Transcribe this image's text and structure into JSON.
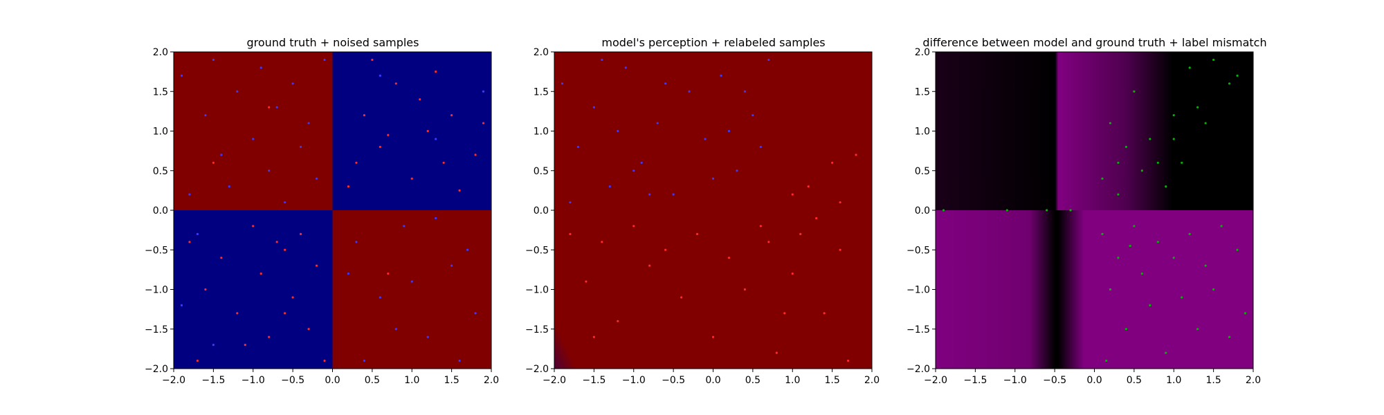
{
  "chart_data": [
    {
      "type": "heatmap",
      "title": "ground truth + noised samples",
      "xlabel": "",
      "ylabel": "",
      "xlim": [
        -2.0,
        2.0
      ],
      "ylim": [
        -2.0,
        2.0
      ],
      "xticks": [
        "−2.0",
        "−1.5",
        "−1.0",
        "−0.5",
        "0.0",
        "0.5",
        "1.0",
        "1.5",
        "2.0"
      ],
      "yticks": [
        "−2.0",
        "−1.5",
        "−1.0",
        "−0.5",
        "0.0",
        "0.5",
        "1.0",
        "1.5",
        "2.0"
      ],
      "background": {
        "description_free": true,
        "regions": [
          {
            "x": [
              -2.0,
              0.0
            ],
            "y": [
              0.0,
              2.0
            ],
            "color": "#800000"
          },
          {
            "x": [
              0.0,
              2.0
            ],
            "y": [
              0.0,
              2.0
            ],
            "color": "#000080"
          },
          {
            "x": [
              -2.0,
              0.0
            ],
            "y": [
              -2.0,
              0.0
            ],
            "color": "#000080"
          },
          {
            "x": [
              0.0,
              2.0
            ],
            "y": [
              -2.0,
              0.0
            ],
            "color": "#800000"
          }
        ]
      },
      "series": [
        {
          "color": "#3a3aff",
          "points": [
            [
              -1.9,
              1.7
            ],
            [
              -1.8,
              0.2
            ],
            [
              -1.6,
              1.2
            ],
            [
              -1.5,
              1.9
            ],
            [
              -1.4,
              0.7
            ],
            [
              -1.3,
              0.3
            ],
            [
              -1.2,
              1.5
            ],
            [
              -1.0,
              0.9
            ],
            [
              -0.9,
              1.8
            ],
            [
              -0.8,
              0.5
            ],
            [
              -0.7,
              1.3
            ],
            [
              -0.6,
              0.1
            ],
            [
              -0.5,
              1.6
            ],
            [
              -0.4,
              0.8
            ],
            [
              -0.3,
              1.1
            ],
            [
              -0.2,
              0.4
            ],
            [
              -0.1,
              1.9
            ],
            [
              -1.7,
              -0.3
            ],
            [
              -1.9,
              -1.2
            ],
            [
              -1.5,
              -1.7
            ],
            [
              0.3,
              -0.4
            ],
            [
              0.6,
              -1.1
            ],
            [
              0.9,
              -0.2
            ],
            [
              1.2,
              -1.6
            ],
            [
              1.5,
              -0.7
            ],
            [
              1.8,
              -1.3
            ],
            [
              0.4,
              -1.9
            ],
            [
              1.0,
              -0.9
            ],
            [
              1.3,
              -0.1
            ],
            [
              1.7,
              -0.5
            ],
            [
              0.2,
              -0.8
            ],
            [
              0.8,
              -1.5
            ],
            [
              1.6,
              -1.9
            ],
            [
              0.6,
              1.7
            ],
            [
              1.3,
              0.9
            ],
            [
              1.9,
              1.5
            ]
          ]
        },
        {
          "color": "#ff2a2a",
          "points": [
            [
              0.2,
              0.3
            ],
            [
              0.4,
              1.2
            ],
            [
              0.6,
              0.8
            ],
            [
              0.7,
              0.95
            ],
            [
              0.8,
              1.6
            ],
            [
              1.0,
              0.4
            ],
            [
              1.2,
              1.0
            ],
            [
              1.3,
              1.75
            ],
            [
              1.4,
              0.6
            ],
            [
              1.5,
              1.2
            ],
            [
              1.6,
              0.25
            ],
            [
              1.8,
              0.7
            ],
            [
              1.9,
              1.1
            ],
            [
              0.3,
              0.6
            ],
            [
              0.5,
              1.9
            ],
            [
              1.1,
              1.4
            ],
            [
              -1.8,
              -0.4
            ],
            [
              -1.6,
              -1.0
            ],
            [
              -1.4,
              -0.6
            ],
            [
              -1.2,
              -1.3
            ],
            [
              -1.0,
              -0.2
            ],
            [
              -0.9,
              -0.8
            ],
            [
              -0.8,
              -1.6
            ],
            [
              -0.7,
              -0.4
            ],
            [
              -0.6,
              -0.5
            ],
            [
              -0.5,
              -1.1
            ],
            [
              -0.4,
              -0.3
            ],
            [
              -0.3,
              -1.5
            ],
            [
              -0.2,
              -0.7
            ],
            [
              -0.1,
              -1.9
            ],
            [
              -1.7,
              -1.9
            ],
            [
              -1.1,
              -1.7
            ],
            [
              -0.6,
              -1.3
            ],
            [
              -1.5,
              0.6
            ],
            [
              -0.8,
              1.3
            ],
            [
              0.7,
              -0.8
            ]
          ]
        }
      ]
    },
    {
      "type": "heatmap",
      "title": "model's perception + relabeled samples",
      "xlabel": "",
      "ylabel": "",
      "xlim": [
        -2.0,
        2.0
      ],
      "ylim": [
        -2.0,
        2.0
      ],
      "xticks": [
        "−2.0",
        "−1.5",
        "−1.0",
        "−0.5",
        "0.0",
        "0.5",
        "1.0",
        "1.5",
        "2.0"
      ],
      "yticks": [
        "−2.0",
        "−1.5",
        "−1.0",
        "−0.5",
        "0.0",
        "0.5",
        "1.0",
        "1.5",
        "2.0"
      ],
      "background": {
        "colors": [
          "#000080",
          "#800000"
        ]
      },
      "series": [
        {
          "color": "#3a3aff",
          "points": [
            [
              -1.9,
              1.6
            ],
            [
              -1.7,
              0.8
            ],
            [
              -1.5,
              1.3
            ],
            [
              -1.3,
              0.3
            ],
            [
              -1.1,
              1.8
            ],
            [
              -0.9,
              0.6
            ],
            [
              -0.7,
              1.1
            ],
            [
              -0.5,
              0.2
            ],
            [
              -0.3,
              1.5
            ],
            [
              -0.1,
              0.9
            ],
            [
              0.1,
              1.7
            ],
            [
              0.3,
              0.5
            ],
            [
              0.5,
              1.2
            ],
            [
              0.7,
              1.9
            ],
            [
              -1.8,
              0.1
            ],
            [
              -1.2,
              1.0
            ],
            [
              -0.6,
              1.6
            ],
            [
              0.0,
              0.4
            ],
            [
              0.2,
              1.0
            ],
            [
              -0.8,
              0.2
            ],
            [
              0.6,
              0.8
            ],
            [
              -1.4,
              1.9
            ],
            [
              -1.0,
              0.5
            ],
            [
              0.4,
              1.5
            ]
          ]
        },
        {
          "color": "#ff2a2a",
          "points": [
            [
              -1.8,
              -0.3
            ],
            [
              -1.6,
              -0.9
            ],
            [
              -1.4,
              -0.4
            ],
            [
              -1.2,
              -1.4
            ],
            [
              -1.0,
              -0.2
            ],
            [
              -0.8,
              -0.7
            ],
            [
              -0.6,
              -0.5
            ],
            [
              -0.4,
              -1.1
            ],
            [
              -0.2,
              -0.3
            ],
            [
              0.0,
              -1.6
            ],
            [
              0.2,
              -0.6
            ],
            [
              0.4,
              -1.0
            ],
            [
              0.6,
              -0.2
            ],
            [
              0.8,
              -1.8
            ],
            [
              1.0,
              -0.8
            ],
            [
              1.2,
              0.3
            ],
            [
              1.4,
              -1.3
            ],
            [
              1.5,
              0.6
            ],
            [
              1.6,
              -0.5
            ],
            [
              1.8,
              0.7
            ],
            [
              1.0,
              0.2
            ],
            [
              0.7,
              -0.4
            ],
            [
              1.3,
              -0.1
            ],
            [
              1.7,
              -1.9
            ],
            [
              0.9,
              -1.3
            ],
            [
              -1.5,
              -1.6
            ],
            [
              1.1,
              -0.3
            ],
            [
              1.6,
              0.1
            ]
          ]
        }
      ]
    },
    {
      "type": "heatmap",
      "title": "difference between model and ground truth + label mismatch",
      "xlabel": "",
      "ylabel": "",
      "xlim": [
        -2.0,
        2.0
      ],
      "ylim": [
        -2.0,
        2.0
      ],
      "xticks": [
        "−2.0",
        "−1.5",
        "−1.0",
        "−0.5",
        "0.0",
        "0.5",
        "1.0",
        "1.5",
        "2.0"
      ],
      "yticks": [
        "−2.0",
        "−1.5",
        "−1.0",
        "−0.5",
        "0.0",
        "0.5",
        "1.0",
        "1.5",
        "2.0"
      ],
      "background": {
        "colors": [
          "#000000",
          "#800080"
        ]
      },
      "series": [
        {
          "color": "#00b400",
          "points": [
            [
              0.1,
              0.4
            ],
            [
              0.2,
              1.1
            ],
            [
              0.3,
              0.2
            ],
            [
              0.4,
              0.8
            ],
            [
              0.5,
              1.5
            ],
            [
              0.6,
              0.5
            ],
            [
              0.7,
              0.9
            ],
            [
              0.9,
              0.3
            ],
            [
              1.0,
              1.2
            ],
            [
              1.1,
              0.6
            ],
            [
              1.2,
              1.8
            ],
            [
              1.3,
              1.3
            ],
            [
              1.4,
              1.1
            ],
            [
              1.5,
              1.9
            ],
            [
              1.7,
              1.6
            ],
            [
              0.8,
              0.6
            ],
            [
              0.3,
              0.6
            ],
            [
              1.0,
              0.9
            ],
            [
              1.8,
              1.7
            ],
            [
              -1.9,
              0.0
            ],
            [
              -1.1,
              0.0
            ],
            [
              -0.6,
              0.0
            ],
            [
              -0.3,
              0.0
            ],
            [
              0.1,
              -0.3
            ],
            [
              0.2,
              -1.0
            ],
            [
              0.3,
              -0.6
            ],
            [
              0.4,
              -1.5
            ],
            [
              0.5,
              -0.2
            ],
            [
              0.6,
              -0.8
            ],
            [
              0.7,
              -1.2
            ],
            [
              0.8,
              -0.4
            ],
            [
              0.9,
              -1.8
            ],
            [
              1.0,
              -0.6
            ],
            [
              1.1,
              -1.1
            ],
            [
              1.2,
              -0.3
            ],
            [
              1.3,
              -1.5
            ],
            [
              1.4,
              -0.7
            ],
            [
              1.5,
              -1.0
            ],
            [
              1.6,
              -0.2
            ],
            [
              1.7,
              -1.6
            ],
            [
              1.8,
              -0.5
            ],
            [
              1.9,
              -1.3
            ],
            [
              0.15,
              -1.9
            ],
            [
              0.45,
              -0.45
            ]
          ]
        }
      ]
    }
  ]
}
